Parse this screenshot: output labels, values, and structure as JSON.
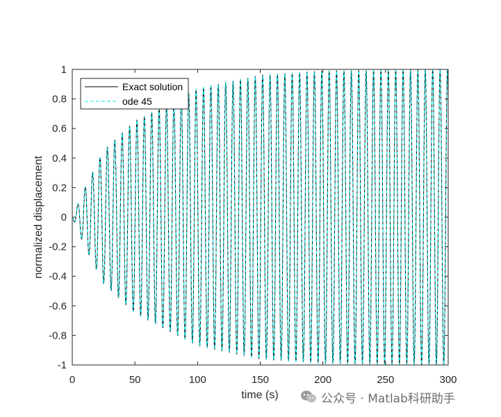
{
  "chart_data": {
    "type": "line",
    "title": "",
    "xlabel": "time (s)",
    "ylabel": "normalized displacement",
    "xlim": [
      0,
      300
    ],
    "ylim": [
      -1,
      1
    ],
    "xticks": [
      "0",
      "50",
      "100",
      "150",
      "200",
      "250",
      "300"
    ],
    "yticks": [
      "1",
      "0.8",
      "0.6",
      "0.4",
      "0.2",
      "0",
      "-0.2",
      "-0.4",
      "-0.6",
      "-0.8",
      "-1"
    ],
    "grid": false,
    "legend_position": "top-left",
    "series": [
      {
        "name": "Exact solution",
        "style": "solid",
        "color": "#000000",
        "description_points": {
          "period_s": 5.9,
          "amplitude_end": 1.0
        }
      },
      {
        "name": "ode 45",
        "style": "dashed",
        "color": "#00e5e5"
      }
    ],
    "oscillation": {
      "period": 5.9,
      "peak_envelope": [
        [
          0,
          0.0
        ],
        [
          10,
          0.2
        ],
        [
          25,
          0.45
        ],
        [
          50,
          0.65
        ],
        [
          100,
          0.87
        ],
        [
          150,
          0.96
        ],
        [
          200,
          0.99
        ],
        [
          300,
          1.0
        ]
      ]
    }
  },
  "watermark": {
    "text": "公众号 · Matlab科研助手"
  }
}
